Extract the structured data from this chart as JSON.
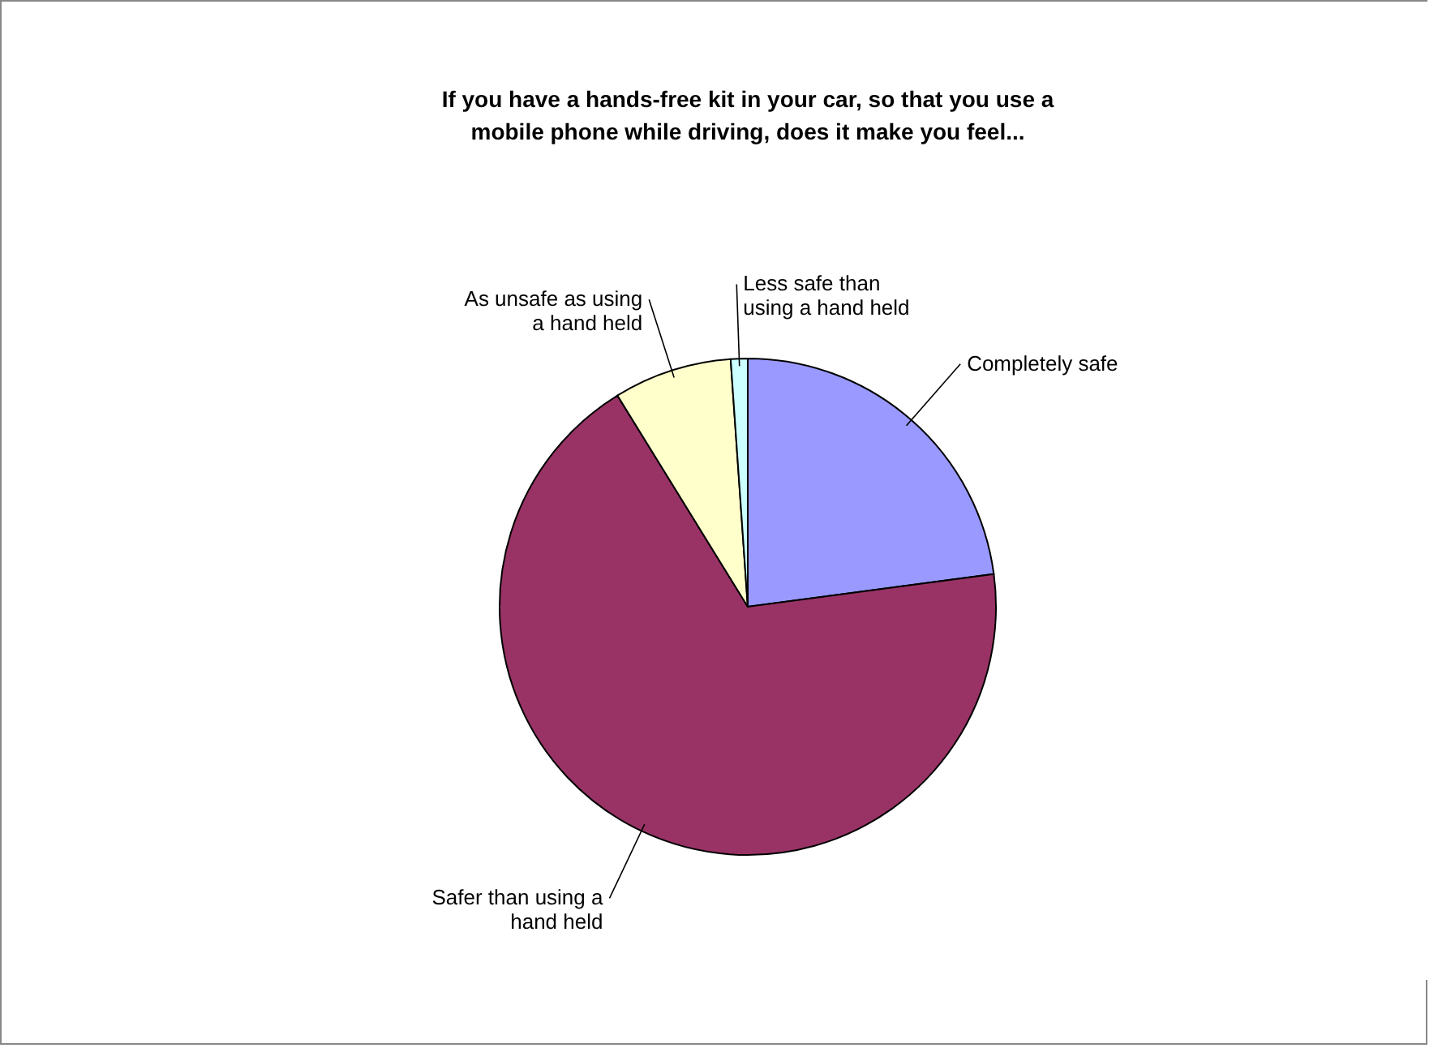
{
  "chart_data": {
    "type": "pie",
    "title": "If you have a hands-free kit in your car, so that you use a mobile phone while driving, does it make you feel...",
    "categories": [
      "Completely safe",
      "Safer than using a hand held",
      "As unsafe as using a hand held",
      "Less safe than using a hand held"
    ],
    "values": [
      22.9,
      68.3,
      7.7,
      1.1
    ],
    "colors": [
      "#9999ff",
      "#993366",
      "#ffffcc",
      "#ccffff"
    ],
    "legend": false
  }
}
